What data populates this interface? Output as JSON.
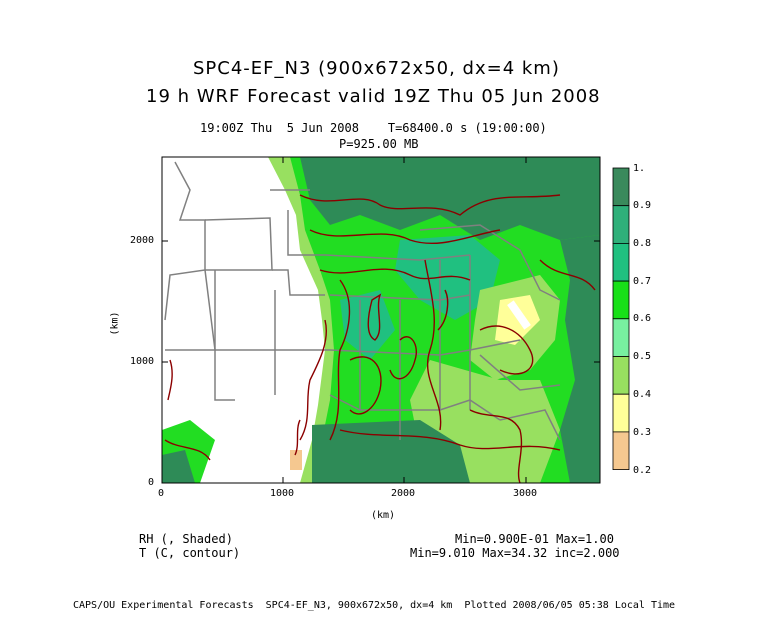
{
  "header": {
    "title_line1": "SPC4-EF_N3 (900x672x50, dx=4 km)",
    "title_line2": "19 h WRF Forecast valid 19Z Thu 05 Jun 2008",
    "time_line": "19:00Z Thu  5 Jun 2008    T=68400.0 s (19:00:00)",
    "level_line": "P=925.00 MB"
  },
  "axes": {
    "x_ticks": [
      "0",
      "1000",
      "2000",
      "3000"
    ],
    "y_ticks": [
      "0",
      "1000",
      "2000"
    ],
    "x_label": "(km)",
    "y_label": "(km)"
  },
  "colorbar": {
    "labels": [
      "1.",
      "0.9",
      "0.8",
      "0.7",
      "0.6",
      "0.5",
      "0.4",
      "0.3",
      "0.2"
    ],
    "colors": [
      "#3a8a5c",
      "#2fb07a",
      "#20c080",
      "#18e018",
      "#78f0a0",
      "#98e060",
      "#ffff99",
      "#f5c890",
      "#c99860"
    ]
  },
  "legend": {
    "field1": "RH (, Shaded)",
    "field2": "T (C, contour)",
    "stats1": "Min=0.900E-01 Max=1.00",
    "stats2": "Min=9.010 Max=34.32 inc=2.000"
  },
  "footer": {
    "credit": "CAPS/OU Experimental Forecasts  SPC4-EF_N3, 900x672x50, dx=4 km  Plotted 2008/06/05 05:38 Local Time"
  },
  "map_colors": {
    "dark_green": "#2e8b57",
    "med_green": "#20c080",
    "bright_green": "#22dd22",
    "light_green": "#90ee90",
    "yellow": "#ffff99",
    "tan": "#f5c890",
    "contour": "#8b0000",
    "border": "#808080"
  }
}
